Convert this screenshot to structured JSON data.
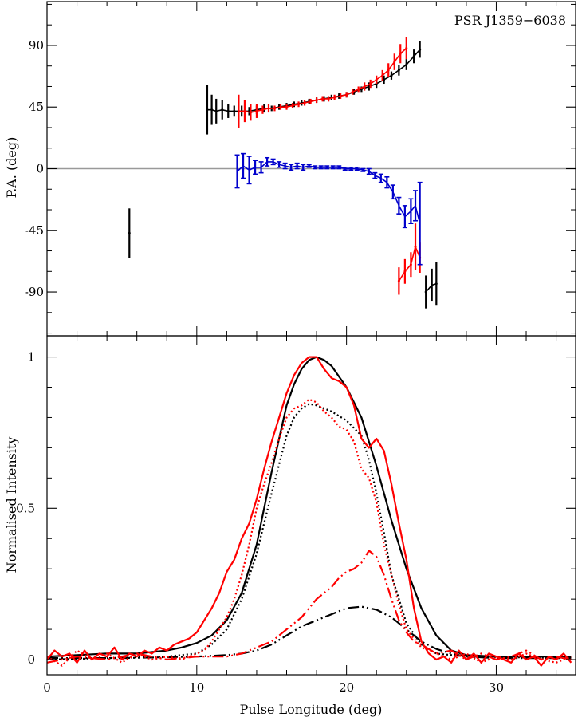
{
  "chart_data": [
    {
      "type": "scatter",
      "panel": "position-angle",
      "title": "PSR J1359−6038",
      "ylabel": "P.A. (deg)",
      "xlim": [
        0,
        35.3
      ],
      "ylim": [
        -122,
        122
      ],
      "yticks": [
        {
          "v": 90,
          "label": "90"
        },
        {
          "v": 45,
          "label": "45"
        },
        {
          "v": 0,
          "label": "0"
        },
        {
          "v": -45,
          "label": "-45"
        },
        {
          "v": -90,
          "label": "-90"
        }
      ],
      "xticks": [
        0,
        10,
        20,
        30
      ],
      "zero_line": true,
      "series": [
        {
          "color": "#000000",
          "points": [
            [
              5.5,
              -47,
              18
            ],
            [
              10.7,
              43,
              18
            ],
            [
              11.0,
              43,
              11
            ],
            [
              11.3,
              42,
              9
            ],
            [
              11.7,
              43,
              7
            ],
            [
              12.1,
              42,
              5
            ],
            [
              12.5,
              42,
              4
            ],
            [
              13.0,
              42,
              4
            ],
            [
              13.5,
              42,
              3
            ],
            [
              14.0,
              43,
              3
            ],
            [
              14.5,
              44,
              3
            ],
            [
              15.0,
              44,
              2
            ],
            [
              15.5,
              45,
              2
            ],
            [
              16.0,
              46,
              2
            ],
            [
              16.5,
              47,
              2
            ],
            [
              17.0,
              48,
              2
            ],
            [
              17.5,
              49,
              2
            ],
            [
              18.0,
              50,
              2
            ],
            [
              18.5,
              51,
              2
            ],
            [
              19.0,
              52,
              2
            ],
            [
              19.5,
              53,
              2
            ],
            [
              20.0,
              54,
              2
            ],
            [
              20.5,
              56,
              2
            ],
            [
              21.0,
              58,
              2
            ],
            [
              21.5,
              60,
              3
            ],
            [
              22.0,
              62,
              3
            ],
            [
              22.5,
              65,
              3
            ],
            [
              23.0,
              68,
              3
            ],
            [
              23.5,
              72,
              4
            ],
            [
              24.0,
              76,
              4
            ],
            [
              24.5,
              82,
              5
            ],
            [
              24.9,
              87,
              6
            ],
            [
              25.3,
              -90,
              12
            ],
            [
              25.7,
              -85,
              12
            ],
            [
              26.0,
              -84,
              16
            ]
          ]
        },
        {
          "color": "#ff0000",
          "points": [
            [
              12.8,
              42,
              12
            ],
            [
              13.2,
              42,
              8
            ],
            [
              13.6,
              41,
              6
            ],
            [
              14.0,
              42,
              5
            ],
            [
              14.4,
              43,
              3
            ],
            [
              14.8,
              44,
              3
            ],
            [
              15.2,
              44,
              2
            ],
            [
              15.6,
              45,
              2
            ],
            [
              16.0,
              45,
              2
            ],
            [
              16.4,
              46,
              2
            ],
            [
              16.8,
              47,
              2
            ],
            [
              17.2,
              48,
              2
            ],
            [
              17.6,
              49,
              2
            ],
            [
              18.0,
              50,
              2
            ],
            [
              18.4,
              51,
              2
            ],
            [
              18.8,
              51,
              2
            ],
            [
              19.2,
              52,
              2
            ],
            [
              19.6,
              53,
              2
            ],
            [
              20.0,
              54,
              2
            ],
            [
              20.4,
              56,
              2
            ],
            [
              20.8,
              58,
              2
            ],
            [
              21.2,
              60,
              3
            ],
            [
              21.6,
              62,
              3
            ],
            [
              22.0,
              65,
              3
            ],
            [
              22.4,
              68,
              4
            ],
            [
              22.8,
              72,
              5
            ],
            [
              23.2,
              78,
              6
            ],
            [
              23.6,
              84,
              7
            ],
            [
              24.0,
              88,
              8
            ],
            [
              23.5,
              -82,
              10
            ],
            [
              23.9,
              -75,
              9
            ],
            [
              24.3,
              -70,
              9
            ],
            [
              24.6,
              -57,
              17
            ],
            [
              24.9,
              -65,
              11
            ]
          ]
        },
        {
          "color": "#0000cc",
          "points": [
            [
              12.7,
              -2,
              12
            ],
            [
              13.1,
              2,
              9
            ],
            [
              13.5,
              -1,
              10
            ],
            [
              13.9,
              1,
              5
            ],
            [
              14.3,
              1,
              4
            ],
            [
              14.7,
              5,
              3
            ],
            [
              15.1,
              5,
              2
            ],
            [
              15.5,
              3,
              2
            ],
            [
              15.9,
              2,
              2
            ],
            [
              16.3,
              1,
              2
            ],
            [
              16.7,
              2,
              2
            ],
            [
              17.1,
              1,
              2
            ],
            [
              17.5,
              2,
              1
            ],
            [
              17.9,
              1,
              1
            ],
            [
              18.3,
              1,
              1
            ],
            [
              18.7,
              1,
              1
            ],
            [
              19.1,
              1,
              1
            ],
            [
              19.5,
              1,
              1
            ],
            [
              19.9,
              0,
              1
            ],
            [
              20.3,
              0,
              1
            ],
            [
              20.7,
              0,
              1
            ],
            [
              21.1,
              -1,
              1
            ],
            [
              21.5,
              -2,
              2
            ],
            [
              21.9,
              -5,
              2
            ],
            [
              22.3,
              -7,
              3
            ],
            [
              22.7,
              -10,
              4
            ],
            [
              23.1,
              -17,
              5
            ],
            [
              23.5,
              -27,
              6
            ],
            [
              23.9,
              -35,
              8
            ],
            [
              24.3,
              -31,
              9
            ],
            [
              24.6,
              -27,
              11
            ],
            [
              24.9,
              -40,
              30
            ]
          ]
        }
      ]
    },
    {
      "type": "line",
      "panel": "intensity-profile",
      "xlabel": "Pulse Longitude (deg)",
      "ylabel": "Normalised Intensity",
      "xlim": [
        0,
        35.3
      ],
      "ylim": [
        -0.05,
        1.07
      ],
      "yticks": [
        {
          "v": 0,
          "label": "0"
        },
        {
          "v": 0.5,
          "label": "0.5"
        },
        {
          "v": 1,
          "label": "1"
        }
      ],
      "xticks": [
        {
          "v": 0,
          "label": "0"
        },
        {
          "v": 10,
          "label": "10"
        },
        {
          "v": 20,
          "label": "20"
        },
        {
          "v": 30,
          "label": "30"
        }
      ],
      "series": [
        {
          "color": "#000000",
          "dash": "",
          "width": 2.2,
          "x": [
            0,
            2,
            4,
            6,
            8,
            9,
            10,
            11,
            12,
            13,
            14,
            15,
            16,
            16.5,
            17,
            17.5,
            18,
            18.5,
            19,
            20,
            21,
            22,
            22.5,
            23,
            24,
            25,
            26,
            27,
            28,
            30,
            32,
            35
          ],
          "y": [
            0.01,
            0.015,
            0.02,
            0.02,
            0.03,
            0.04,
            0.055,
            0.08,
            0.13,
            0.22,
            0.38,
            0.62,
            0.84,
            0.91,
            0.96,
            0.99,
            1.0,
            0.99,
            0.97,
            0.9,
            0.8,
            0.64,
            0.55,
            0.46,
            0.3,
            0.17,
            0.08,
            0.03,
            0.015,
            0.01,
            0.01,
            0.01
          ]
        },
        {
          "color": "#000000",
          "dash": "2,3",
          "width": 2.2,
          "x": [
            0,
            4,
            8,
            10,
            11,
            12,
            13,
            14,
            15,
            16,
            16.5,
            17,
            17.5,
            18,
            18.5,
            19,
            20,
            21,
            21.5,
            22,
            22.5,
            23,
            24,
            25,
            26,
            28,
            35
          ],
          "y": [
            0,
            0.005,
            0.01,
            0.02,
            0.05,
            0.1,
            0.2,
            0.35,
            0.55,
            0.74,
            0.8,
            0.83,
            0.845,
            0.84,
            0.83,
            0.82,
            0.79,
            0.74,
            0.66,
            0.55,
            0.42,
            0.28,
            0.12,
            0.05,
            0.02,
            0.01,
            0.005
          ]
        },
        {
          "color": "#000000",
          "dash": "14,4,2,4,2,4",
          "width": 2.2,
          "x": [
            0,
            5,
            10,
            12,
            13,
            14,
            15,
            16,
            17,
            18,
            19,
            20,
            21,
            22,
            23,
            24,
            25,
            26,
            27,
            28,
            30,
            35
          ],
          "y": [
            0.005,
            0.005,
            0.01,
            0.015,
            0.02,
            0.03,
            0.05,
            0.08,
            0.11,
            0.13,
            0.15,
            0.17,
            0.175,
            0.165,
            0.14,
            0.1,
            0.06,
            0.035,
            0.02,
            0.01,
            0.005,
            0.005
          ]
        },
        {
          "color": "#ff0000",
          "dash": "",
          "width": 2.2,
          "x": [
            0,
            0.5,
            1,
            1.5,
            2,
            2.5,
            3,
            3.5,
            4,
            4.5,
            5,
            5.5,
            6,
            6.5,
            7,
            7.5,
            8,
            8.5,
            9,
            9.5,
            10,
            10.5,
            11,
            11.5,
            12,
            12.5,
            13,
            13.5,
            14,
            14.5,
            15,
            15.5,
            16,
            16.5,
            17,
            17.5,
            18,
            18.5,
            19,
            19.5,
            20,
            20.5,
            21,
            21.5,
            22,
            22.5,
            23,
            23.5,
            24,
            24.5,
            25,
            25.5,
            26,
            26.5,
            27,
            27.5,
            28,
            28.5,
            29,
            29.5,
            30,
            30.5,
            31,
            31.5,
            32,
            32.5,
            33,
            33.5,
            34,
            34.5,
            35
          ],
          "y": [
            0.0,
            0.03,
            0.01,
            0.02,
            -0.01,
            0.03,
            0.0,
            0.02,
            0.01,
            0.04,
            0.0,
            0.02,
            0.01,
            0.03,
            0.02,
            0.04,
            0.03,
            0.05,
            0.06,
            0.07,
            0.09,
            0.13,
            0.17,
            0.22,
            0.29,
            0.33,
            0.4,
            0.45,
            0.53,
            0.63,
            0.72,
            0.8,
            0.88,
            0.94,
            0.98,
            1.0,
            1.0,
            0.96,
            0.93,
            0.92,
            0.9,
            0.84,
            0.73,
            0.7,
            0.73,
            0.69,
            0.58,
            0.45,
            0.33,
            0.17,
            0.06,
            0.02,
            0.0,
            0.01,
            -0.01,
            0.03,
            0.0,
            0.02,
            -0.01,
            0.02,
            0.01,
            0.0,
            -0.01,
            0.02,
            0.0,
            0.01,
            -0.02,
            0.01,
            0.0,
            0.02,
            -0.01
          ]
        },
        {
          "color": "#ff0000",
          "dash": "2,3",
          "width": 2.2,
          "x": [
            0,
            1,
            2,
            3,
            4,
            5,
            6,
            7,
            8,
            9,
            10,
            10.5,
            11,
            11.5,
            12,
            12.5,
            13,
            13.5,
            14,
            14.5,
            15,
            15.5,
            16,
            16.5,
            17,
            17.5,
            18,
            18.5,
            19,
            19.5,
            20,
            20.5,
            21,
            21.5,
            22,
            22.5,
            23,
            23.5,
            24,
            25,
            26,
            27,
            28,
            29,
            30,
            31,
            32,
            33,
            34,
            35
          ],
          "y": [
            0.01,
            -0.02,
            0.03,
            0.0,
            0.02,
            -0.01,
            0.02,
            0.0,
            0.01,
            0.0,
            0.02,
            0.03,
            0.06,
            0.1,
            0.14,
            0.2,
            0.28,
            0.38,
            0.5,
            0.58,
            0.65,
            0.73,
            0.8,
            0.83,
            0.84,
            0.86,
            0.85,
            0.82,
            0.8,
            0.77,
            0.76,
            0.72,
            0.63,
            0.6,
            0.52,
            0.38,
            0.28,
            0.18,
            0.1,
            0.04,
            0.02,
            0.0,
            0.02,
            -0.01,
            0.01,
            0.0,
            0.02,
            0.0,
            -0.01,
            0.01
          ]
        },
        {
          "color": "#ff0000",
          "dash": "14,4,2,4,2,4",
          "width": 2.2,
          "x": [
            0,
            2,
            4,
            6,
            8,
            10,
            12,
            13,
            14,
            15,
            16,
            17,
            18,
            18.5,
            19,
            19.5,
            20,
            20.5,
            21,
            21.5,
            22,
            22.5,
            23,
            23.5,
            24,
            24.5,
            25,
            26,
            27,
            28,
            29,
            30,
            31,
            32,
            33,
            34,
            35
          ],
          "y": [
            -0.01,
            0.01,
            0.0,
            0.02,
            0.0,
            0.01,
            0.01,
            0.02,
            0.04,
            0.06,
            0.1,
            0.14,
            0.2,
            0.22,
            0.24,
            0.27,
            0.29,
            0.3,
            0.32,
            0.36,
            0.34,
            0.28,
            0.2,
            0.13,
            0.09,
            0.06,
            0.05,
            0.02,
            0.03,
            0.0,
            0.02,
            0.0,
            0.01,
            0.03,
            0.0,
            0.01,
            0.0
          ]
        }
      ]
    }
  ]
}
